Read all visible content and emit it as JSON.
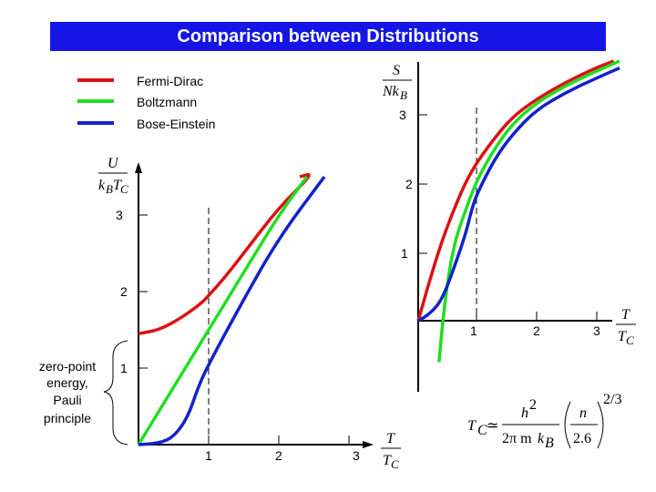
{
  "title": "Comparison between Distributions",
  "legend": [
    {
      "label": "Fermi-Dirac",
      "color": "#dd1111"
    },
    {
      "label": "Boltzmann",
      "color": "#22dd22"
    },
    {
      "label": "Bose-Einstein",
      "color": "#1122cc"
    }
  ],
  "annotation": [
    "zero-point",
    "energy,",
    "Pauli",
    "principle"
  ],
  "chart_data": [
    {
      "type": "line",
      "ylabel": "U / kBTC",
      "xlabel": "T / TC",
      "xlim": [
        0,
        3.6
      ],
      "ylim": [
        0,
        3.6
      ],
      "x_ticks": [
        "1",
        "2",
        "3"
      ],
      "y_ticks": [
        "1",
        "2",
        "3"
      ],
      "series": [
        {
          "name": "Fermi-Dirac",
          "x": [
            0,
            0.3,
            0.6,
            0.9,
            1.0,
            1.2,
            1.5,
            2.0,
            2.5,
            2.3
          ],
          "y": [
            1.45,
            1.5,
            1.65,
            1.85,
            1.95,
            2.15,
            2.5,
            3.1,
            3.55,
            3.5
          ]
        },
        {
          "name": "Boltzmann",
          "x": [
            0,
            0.5,
            1.0,
            1.5,
            2.0,
            2.4
          ],
          "y": [
            0,
            0.75,
            1.5,
            2.25,
            3.0,
            3.5
          ]
        },
        {
          "name": "Bose-Einstein",
          "x": [
            0,
            0.3,
            0.5,
            0.7,
            0.85,
            1.0,
            1.5,
            2.0,
            2.65
          ],
          "y": [
            0,
            0.02,
            0.1,
            0.35,
            0.75,
            1.05,
            1.9,
            2.7,
            3.5
          ]
        }
      ],
      "vline_x": 1
    },
    {
      "type": "line",
      "ylabel": "S / NkB",
      "xlabel": "T / TC",
      "xlim": [
        0,
        3.6
      ],
      "ylim": [
        -0.6,
        3.7
      ],
      "x_ticks": [
        "1",
        "2",
        "3"
      ],
      "y_ticks": [
        "1",
        "2",
        "3"
      ],
      "series": [
        {
          "name": "Fermi-Dirac",
          "x": [
            0,
            0.2,
            0.4,
            0.6,
            0.8,
            1.0,
            1.3,
            1.6,
            2.0,
            2.5,
            3.0,
            3.3
          ],
          "y": [
            0,
            0.6,
            1.15,
            1.6,
            2.0,
            2.3,
            2.65,
            2.95,
            3.2,
            3.45,
            3.65,
            3.75
          ]
        },
        {
          "name": "Boltzmann",
          "x": [
            0.35,
            0.45,
            0.6,
            0.8,
            1.0,
            1.3,
            1.6,
            2.0,
            2.5,
            3.0,
            3.4
          ],
          "y": [
            -0.6,
            0.3,
            1.1,
            1.6,
            2.05,
            2.5,
            2.85,
            3.15,
            3.4,
            3.6,
            3.75
          ]
        },
        {
          "name": "Bose-Einstein",
          "x": [
            0,
            0.2,
            0.4,
            0.6,
            0.8,
            0.9,
            1.0,
            1.3,
            1.6,
            2.0,
            2.5,
            3.0,
            3.4
          ],
          "y": [
            0,
            0.1,
            0.3,
            0.75,
            1.25,
            1.6,
            1.85,
            2.35,
            2.7,
            3.05,
            3.3,
            3.5,
            3.65
          ]
        }
      ],
      "vline_x": 1
    }
  ],
  "formula": {
    "lhs": "T",
    "lhs_sub": "C",
    "approx": "≃",
    "num": "h",
    "num_sup": "2",
    "den_pre": "2π m",
    "den_k": "k",
    "den_k_sub": "B",
    "paren_num": "n",
    "paren_den": "2.6",
    "exponent": "2/3"
  }
}
